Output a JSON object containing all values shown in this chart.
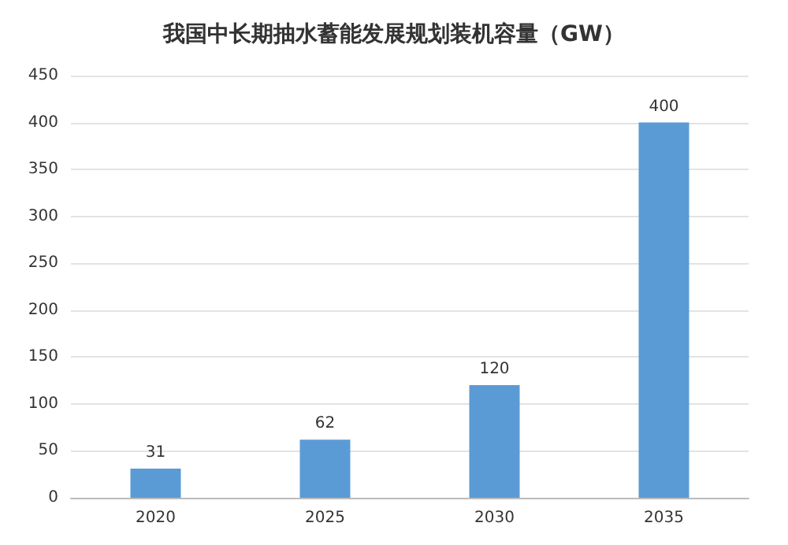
{
  "chart_data": {
    "type": "bar",
    "title": "我国中长期抽水蓄能发展规划装机容量（GW）",
    "categories": [
      "2020",
      "2025",
      "2030",
      "2035"
    ],
    "values": [
      31,
      62,
      120,
      400
    ],
    "color": "#5b9bd5",
    "ylim": [
      0,
      450
    ],
    "yticks": [
      0,
      50,
      100,
      150,
      200,
      250,
      300,
      350,
      400,
      450
    ],
    "grid": "y",
    "data_labels": true
  }
}
